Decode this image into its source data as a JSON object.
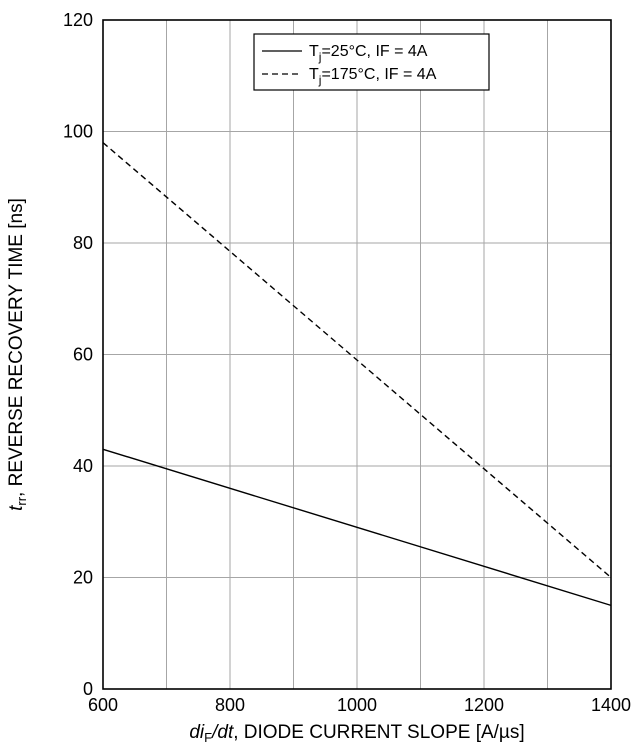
{
  "chart_data": {
    "type": "line",
    "xlim": [
      600,
      1400
    ],
    "ylim": [
      0,
      120
    ],
    "x_ticks": [
      600,
      800,
      1000,
      1200,
      1400
    ],
    "y_ticks": [
      0,
      20,
      40,
      60,
      80,
      100,
      120
    ],
    "x_tick_labels": [
      "600",
      "800",
      "1000",
      "1200",
      "1400"
    ],
    "y_tick_labels": [
      "0",
      "20",
      "40",
      "60",
      "80",
      "100",
      "120"
    ],
    "xlabel": {
      "italic": "di",
      "sub": "F",
      "italic2": "/dt",
      "rest": ", DIODE CURRENT SLOPE [A/µs]"
    },
    "ylabel": {
      "italic": "t",
      "sub": "rr",
      "rest": ", REVERSE RECOVERY TIME [ns]"
    },
    "grid": true,
    "legend_position": "top-right",
    "series": [
      {
        "name": "Tj=25°C, IF = 4A",
        "label_main": "T",
        "label_sub": "j",
        "label_rest": "=25°C, IF = 4A",
        "style": "solid",
        "color": "#000000",
        "x": [
          600,
          1400
        ],
        "y": [
          43,
          15
        ]
      },
      {
        "name": "Tj=175°C, IF = 4A",
        "label_main": "T",
        "label_sub": "j",
        "label_rest": "=175°C, IF = 4A",
        "style": "dashed",
        "color": "#000000",
        "x": [
          600,
          1400
        ],
        "y": [
          98,
          20
        ]
      }
    ]
  }
}
